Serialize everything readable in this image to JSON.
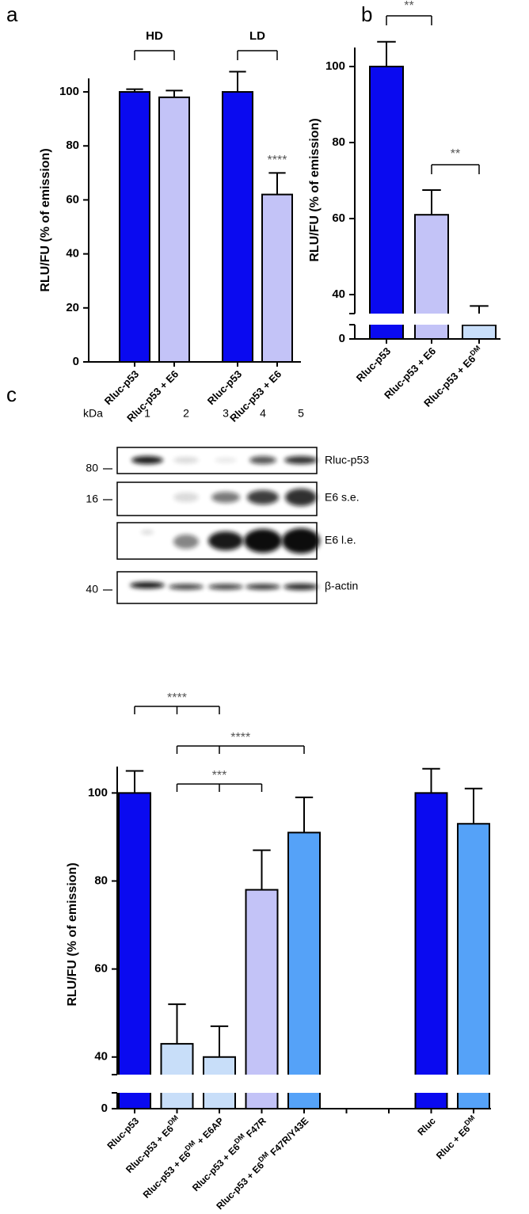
{
  "panel_labels": [
    "a",
    "b",
    "c"
  ],
  "chart_data": [
    {
      "type": "bar",
      "ylabel": "RLU/FU (% of emission)",
      "categories": [
        [
          "Rluc-p53"
        ],
        [
          "Rluc-p53 + E6"
        ],
        [
          "Rluc-p53"
        ],
        [
          "Rluc-p53 + E6"
        ]
      ],
      "values": [
        100,
        98,
        100,
        62
      ],
      "errors": [
        1,
        2.5,
        7.5,
        8
      ],
      "colors": [
        "#0a0af0",
        "#c3c3f7",
        "#0a0af0",
        "#c3c3f7"
      ],
      "ylim": [
        0,
        105
      ],
      "yticks": [
        0,
        20,
        40,
        60,
        80,
        100
      ],
      "groups": [
        "HD",
        "LD"
      ],
      "annotations": [
        "****"
      ]
    },
    {
      "type": "bar",
      "ylabel": "RLU/FU (% of emission)",
      "categories": [
        [
          "Rluc-p53"
        ],
        [
          "Rluc-p53 + E6"
        ],
        [
          "Rluc-p53 + E6",
          {
            "sup": "DM"
          }
        ]
      ],
      "values": [
        100,
        61,
        30
      ],
      "errors": [
        6.5,
        6.5,
        7
      ],
      "colors": [
        "#0a0af0",
        "#c3c3f7",
        "#c8def9"
      ],
      "ylim": [
        0,
        105
      ],
      "ybreak": [
        31,
        35
      ],
      "yticks": [
        0,
        40,
        60,
        80,
        100
      ],
      "annotations": [
        "**",
        "**"
      ]
    },
    {
      "type": "bar",
      "ylabel": "RLU/FU (% of emission)",
      "categories": [
        [
          "Rluc-p53"
        ],
        [
          "Rluc-p53 + E6",
          {
            "sup": "DM"
          }
        ],
        [
          "Rluc-p53 + E6",
          {
            "sup": "DM"
          },
          " + E6AP"
        ],
        [
          "Rluc-p53 + E6",
          {
            "sup": "DM"
          },
          " F47R"
        ],
        [
          "Rluc-p53 + E6",
          {
            "sup": "DM"
          },
          " F47R/Y43E"
        ],
        null,
        null,
        [
          "Rluc"
        ],
        [
          "Rluc + E6",
          {
            "sup": "DM"
          }
        ]
      ],
      "values": [
        100,
        43,
        40,
        78,
        91,
        null,
        null,
        100,
        93
      ],
      "errors": [
        5,
        9,
        7,
        9,
        8,
        null,
        null,
        5.5,
        8
      ],
      "colors": [
        "#0a0af0",
        "#c8def9",
        "#c8def9",
        "#c3c3f7",
        "#55a2f8",
        null,
        null,
        "#0a0af0",
        "#55a2f8"
      ],
      "ylim": [
        0,
        106
      ],
      "ybreak": [
        30,
        36
      ],
      "yticks": [
        0,
        40,
        60,
        80,
        100
      ],
      "annotations": [
        "****",
        "****",
        "***"
      ]
    }
  ],
  "blot": {
    "unit": "kDa",
    "lanes": [
      "1",
      "2",
      "3",
      "4",
      "5"
    ],
    "rows": [
      {
        "label": "Rluc-p53",
        "marker": 80
      },
      {
        "label": "E6 s.e.",
        "marker": 16
      },
      {
        "label": "E6 l.e."
      },
      {
        "label": "β-actin",
        "marker": 40
      }
    ]
  }
}
